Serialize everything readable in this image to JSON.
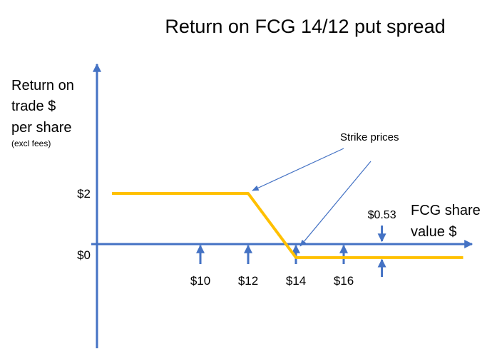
{
  "chart_data": {
    "type": "line",
    "title": "Return on FCG 14/12 put spread",
    "ylabel_lines": [
      "Return on",
      "trade $",
      "per share"
    ],
    "ylabel_note": "(excl fees)",
    "xlabel_lines": [
      "FCG share",
      "value $"
    ],
    "x_ticks": [
      {
        "value": 10,
        "label": "$10"
      },
      {
        "value": 12,
        "label": "$12"
      },
      {
        "value": 14,
        "label": "$14"
      },
      {
        "value": 16,
        "label": "$16"
      }
    ],
    "y_ticks": [
      {
        "value": 2,
        "label": "$2"
      },
      {
        "value": 0,
        "label": "$0"
      }
    ],
    "series": [
      {
        "values": [
          [
            6.3,
            2
          ],
          [
            12,
            2
          ],
          [
            14,
            -0.53
          ],
          [
            21,
            -0.53
          ]
        ],
        "color": "#ffc000"
      }
    ],
    "annotations": {
      "strike_label": "Strike prices",
      "strike_targets": [
        12,
        14
      ],
      "debit_label": "$0.53",
      "debit_value": 0.53,
      "debit_at": 17.6
    },
    "colors": {
      "axis": "#4472c4",
      "line": "#ffc000",
      "callout": "#4472c4"
    }
  }
}
